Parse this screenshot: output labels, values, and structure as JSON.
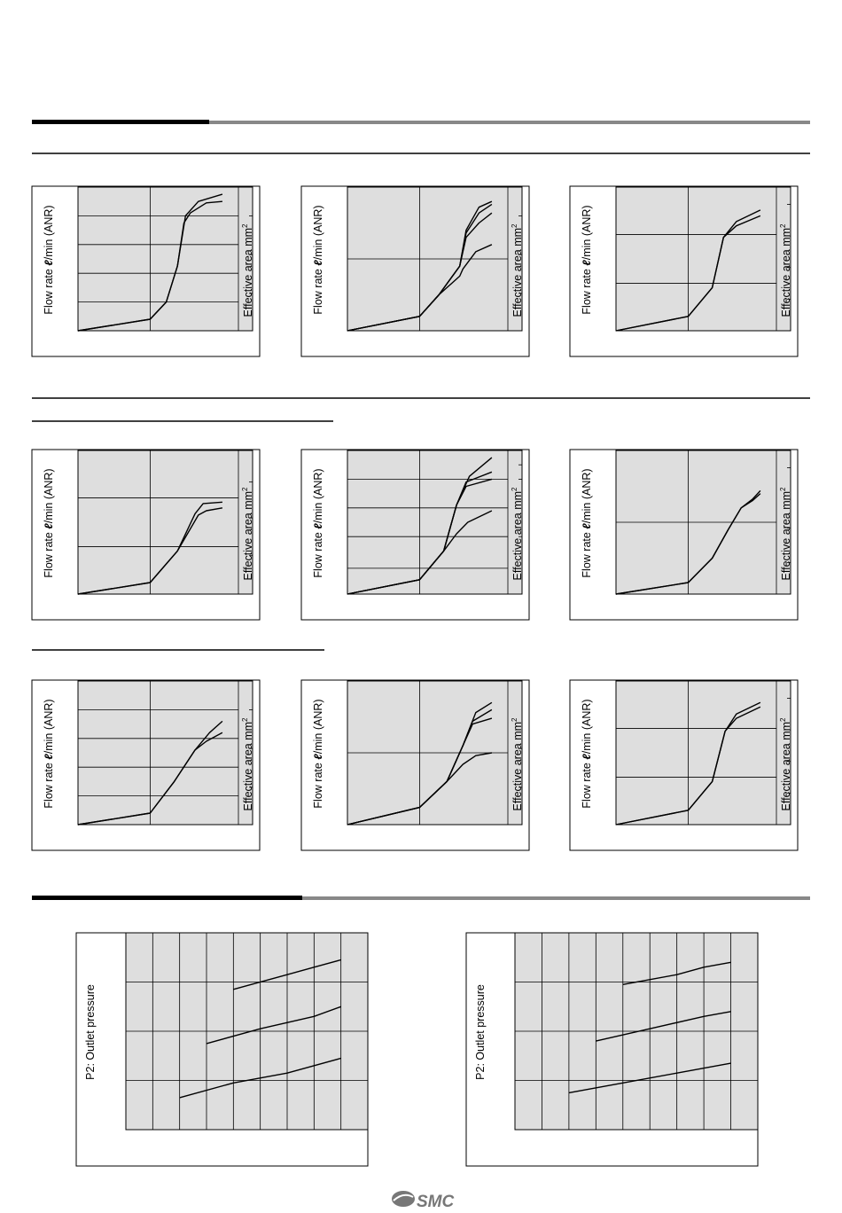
{
  "labels": {
    "flow_rate_prefix": "Flow rate ",
    "flow_rate_unit_symbol": "ℓ",
    "flow_rate_suffix": "/min (ANR)",
    "effective_area": "Effective area mm",
    "effective_area_exp": "2",
    "outlet_pressure": "P2: Outlet pressure"
  },
  "logo": {
    "text": "SMC"
  },
  "colors": {
    "plot_bg": "#dedede",
    "line": "#000000",
    "bar_dark": "#000000",
    "bar_light": "#888888"
  },
  "chart_data": [
    {
      "type": "line",
      "title": "",
      "ylabel": "Flow rate ℓ/min (ANR)",
      "y2label": "Effective area mm2",
      "x_range": [
        0,
        1
      ],
      "y_range": [
        0,
        1
      ],
      "vlines": [
        0.45
      ],
      "hlines": [
        0.2,
        0.4,
        0.6,
        0.8
      ],
      "right_ticks": [
        0.26,
        0.53,
        0.8
      ],
      "series": [
        {
          "x": [
            0,
            0.45,
            0.55,
            0.62,
            0.66,
            0.7,
            0.8,
            0.9
          ],
          "y": [
            0,
            0.08,
            0.2,
            0.45,
            0.75,
            0.82,
            0.89,
            0.9
          ]
        },
        {
          "x": [
            0,
            0.45,
            0.55,
            0.62,
            0.67,
            0.75,
            0.9
          ],
          "y": [
            0,
            0.08,
            0.2,
            0.45,
            0.8,
            0.9,
            0.95
          ]
        }
      ]
    },
    {
      "type": "line",
      "title": "",
      "ylabel": "Flow rate ℓ/min (ANR)",
      "y2label": "Effective area mm2",
      "x_range": [
        0,
        1
      ],
      "y_range": [
        0,
        1
      ],
      "vlines": [
        0.45
      ],
      "hlines": [
        0.5
      ],
      "right_ticks": [
        0.26,
        0.53,
        0.8
      ],
      "series": [
        {
          "x": [
            0,
            0.45,
            0.57,
            0.7,
            0.72,
            0.8,
            0.9
          ],
          "y": [
            0,
            0.1,
            0.25,
            0.38,
            0.43,
            0.55,
            0.6
          ]
        },
        {
          "x": [
            0,
            0.45,
            0.57,
            0.7,
            0.74,
            0.82,
            0.9
          ],
          "y": [
            0,
            0.1,
            0.25,
            0.45,
            0.65,
            0.75,
            0.82
          ]
        },
        {
          "x": [
            0,
            0.45,
            0.57,
            0.7,
            0.74,
            0.82,
            0.9
          ],
          "y": [
            0,
            0.1,
            0.25,
            0.45,
            0.68,
            0.82,
            0.88
          ]
        },
        {
          "x": [
            0,
            0.45,
            0.57,
            0.7,
            0.74,
            0.82,
            0.9
          ],
          "y": [
            0,
            0.1,
            0.25,
            0.45,
            0.7,
            0.86,
            0.9
          ]
        }
      ]
    },
    {
      "type": "line",
      "title": "",
      "ylabel": "Flow rate ℓ/min (ANR)",
      "y2label": "Effective area mm2",
      "x_range": [
        0,
        1
      ],
      "y_range": [
        0,
        1
      ],
      "vlines": [
        0.45
      ],
      "hlines": [
        0.33,
        0.67
      ],
      "right_ticks": [
        0.22,
        0.44,
        0.66,
        0.88
      ],
      "series": [
        {
          "x": [
            0,
            0.45,
            0.6,
            0.67,
            0.75,
            0.9
          ],
          "y": [
            0,
            0.1,
            0.3,
            0.65,
            0.73,
            0.8
          ]
        },
        {
          "x": [
            0,
            0.45,
            0.6,
            0.67,
            0.75,
            0.9
          ],
          "y": [
            0,
            0.1,
            0.3,
            0.65,
            0.76,
            0.84
          ]
        }
      ]
    },
    {
      "type": "line",
      "title": "",
      "ylabel": "Flow rate ℓ/min (ANR)",
      "y2label": "Effective area mm2",
      "x_range": [
        0,
        1
      ],
      "y_range": [
        0,
        1
      ],
      "vlines": [
        0.45
      ],
      "hlines": [
        0.33,
        0.67
      ],
      "right_ticks": [
        0.27,
        0.53,
        0.78
      ],
      "series": [
        {
          "x": [
            0,
            0.45,
            0.62,
            0.75,
            0.8,
            0.9
          ],
          "y": [
            0,
            0.08,
            0.3,
            0.55,
            0.58,
            0.6
          ]
        },
        {
          "x": [
            0,
            0.45,
            0.62,
            0.73,
            0.78,
            0.9
          ],
          "y": [
            0,
            0.08,
            0.3,
            0.56,
            0.63,
            0.64
          ]
        }
      ]
    },
    {
      "type": "line",
      "title": "",
      "ylabel": "Flow rate ℓ/min (ANR)",
      "y2label": "Effective area mm2",
      "x_range": [
        0,
        1
      ],
      "y_range": [
        0,
        1
      ],
      "vlines": [
        0.45
      ],
      "hlines": [
        0.18,
        0.4,
        0.6,
        0.8
      ],
      "right_ticks": [
        0.4,
        0.8,
        0.9
      ],
      "series": [
        {
          "x": [
            0,
            0.45,
            0.6,
            0.68,
            0.75,
            0.9
          ],
          "y": [
            0,
            0.1,
            0.3,
            0.42,
            0.5,
            0.58
          ]
        },
        {
          "x": [
            0,
            0.45,
            0.6,
            0.68,
            0.74,
            0.9
          ],
          "y": [
            0,
            0.1,
            0.3,
            0.62,
            0.75,
            0.8
          ]
        },
        {
          "x": [
            0,
            0.45,
            0.6,
            0.68,
            0.74,
            0.9
          ],
          "y": [
            0,
            0.1,
            0.3,
            0.62,
            0.78,
            0.85
          ]
        },
        {
          "x": [
            0,
            0.45,
            0.6,
            0.68,
            0.76,
            0.9
          ],
          "y": [
            0,
            0.1,
            0.3,
            0.62,
            0.82,
            0.95
          ]
        }
      ]
    },
    {
      "type": "line",
      "title": "",
      "ylabel": "Flow rate ℓ/min (ANR)",
      "y2label": "Effective area mm2",
      "x_range": [
        0,
        1
      ],
      "y_range": [
        0,
        1
      ],
      "vlines": [
        0.45
      ],
      "hlines": [
        0.5
      ],
      "right_ticks": [
        0.22,
        0.46,
        0.66,
        0.88
      ],
      "series": [
        {
          "x": [
            0,
            0.45,
            0.6,
            0.7,
            0.78,
            0.85,
            0.9
          ],
          "y": [
            0,
            0.08,
            0.25,
            0.45,
            0.6,
            0.65,
            0.7
          ]
        },
        {
          "x": [
            0,
            0.45,
            0.6,
            0.7,
            0.78,
            0.85,
            0.9
          ],
          "y": [
            0,
            0.08,
            0.25,
            0.45,
            0.6,
            0.66,
            0.72
          ]
        }
      ]
    },
    {
      "type": "line",
      "title": "",
      "ylabel": "Flow rate ℓ/min (ANR)",
      "y2label": "Effective area mm2",
      "x_range": [
        0,
        1
      ],
      "y_range": [
        0,
        1
      ],
      "vlines": [
        0.45
      ],
      "hlines": [
        0.2,
        0.4,
        0.6,
        0.8
      ],
      "right_ticks": [
        0.26,
        0.53,
        0.8
      ],
      "series": [
        {
          "x": [
            0,
            0.45,
            0.6,
            0.73,
            0.8,
            0.9
          ],
          "y": [
            0,
            0.08,
            0.3,
            0.52,
            0.58,
            0.64
          ]
        },
        {
          "x": [
            0,
            0.45,
            0.6,
            0.73,
            0.82,
            0.9
          ],
          "y": [
            0,
            0.08,
            0.3,
            0.52,
            0.64,
            0.72
          ]
        }
      ]
    },
    {
      "type": "line",
      "title": "",
      "ylabel": "Flow rate ℓ/min (ANR)",
      "y2label": "Effective area mm2",
      "x_range": [
        0,
        1
      ],
      "y_range": [
        0,
        1
      ],
      "vlines": [
        0.45
      ],
      "hlines": [
        0.5
      ],
      "right_ticks": [
        0.26,
        0.53
      ],
      "series": [
        {
          "x": [
            0,
            0.45,
            0.62,
            0.72,
            0.8,
            0.9
          ],
          "y": [
            0,
            0.12,
            0.3,
            0.42,
            0.48,
            0.5
          ]
        },
        {
          "x": [
            0,
            0.45,
            0.62,
            0.72,
            0.78,
            0.9
          ],
          "y": [
            0,
            0.12,
            0.3,
            0.55,
            0.7,
            0.74
          ]
        },
        {
          "x": [
            0,
            0.45,
            0.62,
            0.72,
            0.78,
            0.9
          ],
          "y": [
            0,
            0.12,
            0.3,
            0.55,
            0.72,
            0.8
          ]
        },
        {
          "x": [
            0,
            0.45,
            0.62,
            0.72,
            0.8,
            0.9
          ],
          "y": [
            0,
            0.12,
            0.3,
            0.55,
            0.78,
            0.85
          ]
        }
      ]
    },
    {
      "type": "line",
      "title": "",
      "ylabel": "Flow rate ℓ/min (ANR)",
      "y2label": "Effective area mm2",
      "x_range": [
        0,
        1
      ],
      "y_range": [
        0,
        1
      ],
      "vlines": [
        0.45
      ],
      "hlines": [
        0.33,
        0.67
      ],
      "right_ticks": [
        0.22,
        0.44,
        0.66,
        0.88
      ],
      "series": [
        {
          "x": [
            0,
            0.45,
            0.6,
            0.68,
            0.75,
            0.9
          ],
          "y": [
            0,
            0.1,
            0.3,
            0.65,
            0.74,
            0.82
          ]
        },
        {
          "x": [
            0,
            0.45,
            0.6,
            0.68,
            0.75,
            0.9
          ],
          "y": [
            0,
            0.1,
            0.3,
            0.65,
            0.77,
            0.85
          ]
        }
      ]
    },
    {
      "type": "line",
      "title": "",
      "ylabel": "P2: Outlet pressure",
      "y2label": "",
      "x_range": [
        0,
        9
      ],
      "y_range": [
        0,
        4
      ],
      "vlines": [
        1,
        2,
        3,
        4,
        5,
        6,
        7,
        8
      ],
      "hlines": [
        1,
        2,
        3
      ],
      "series": [
        {
          "x": [
            2,
            4,
            6,
            8
          ],
          "y": [
            0.65,
            0.95,
            1.15,
            1.45
          ]
        },
        {
          "x": [
            3,
            5,
            7,
            8
          ],
          "y": [
            1.75,
            2.05,
            2.3,
            2.5
          ]
        },
        {
          "x": [
            4,
            6,
            7,
            8
          ],
          "y": [
            2.85,
            3.15,
            3.3,
            3.45
          ]
        }
      ]
    },
    {
      "type": "line",
      "title": "",
      "ylabel": "P2: Outlet pressure",
      "y2label": "",
      "x_range": [
        0,
        9
      ],
      "y_range": [
        0,
        4
      ],
      "vlines": [
        1,
        2,
        3,
        4,
        5,
        6,
        7,
        8
      ],
      "hlines": [
        1,
        2,
        3
      ],
      "series": [
        {
          "x": [
            2,
            4,
            6,
            8
          ],
          "y": [
            0.75,
            0.95,
            1.15,
            1.35
          ]
        },
        {
          "x": [
            3,
            5,
            7,
            8
          ],
          "y": [
            1.8,
            2.05,
            2.3,
            2.4
          ]
        },
        {
          "x": [
            4,
            6,
            7,
            8
          ],
          "y": [
            2.95,
            3.15,
            3.3,
            3.4
          ]
        }
      ]
    }
  ]
}
